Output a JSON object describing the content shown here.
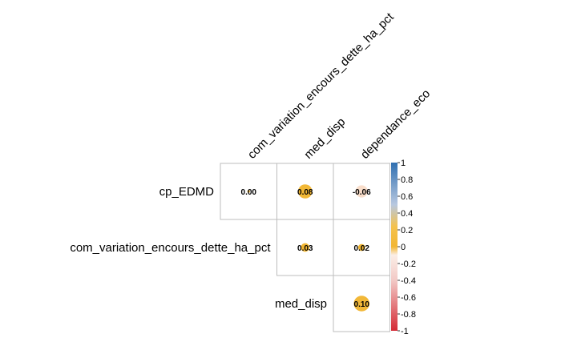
{
  "chart_data": {
    "type": "heatmap",
    "style": "correlation plot, upper triangle, circle size and color encode coefficient",
    "rows": [
      "cp_EDMD",
      "com_variation_encours_dette_ha_pct",
      "med_disp"
    ],
    "columns": [
      "com_variation_encours_dette_ha_pct",
      "med_disp",
      "dependance_eco"
    ],
    "cells": [
      {
        "row": "cp_EDMD",
        "col": "com_variation_encours_dette_ha_pct",
        "value": 0.0,
        "label": "0.00"
      },
      {
        "row": "cp_EDMD",
        "col": "med_disp",
        "value": 0.08,
        "label": "0.08"
      },
      {
        "row": "cp_EDMD",
        "col": "dependance_eco",
        "value": -0.06,
        "label": "-0.06"
      },
      {
        "row": "com_variation_encours_dette_ha_pct",
        "col": "med_disp",
        "value": 0.03,
        "label": "0.03"
      },
      {
        "row": "com_variation_encours_dette_ha_pct",
        "col": "dependance_eco",
        "value": 0.02,
        "label": "0.02"
      },
      {
        "row": "med_disp",
        "col": "dependance_eco",
        "value": 0.1,
        "label": "0.10"
      }
    ],
    "colorbar": {
      "range": [
        -1,
        1
      ],
      "ticks": [
        "1",
        "0.8",
        "0.6",
        "0.4",
        "0.2",
        "0",
        "-0.2",
        "-0.4",
        "-0.6",
        "-0.8",
        "-1"
      ],
      "colors": {
        "positive_end": "#2f6fb0",
        "mid_positive": "#f2b632",
        "center": "#ffffff",
        "mid_negative": "#f5d9c8",
        "negative_end": "#d42a35"
      }
    },
    "grid": true,
    "legend_position": "right"
  }
}
